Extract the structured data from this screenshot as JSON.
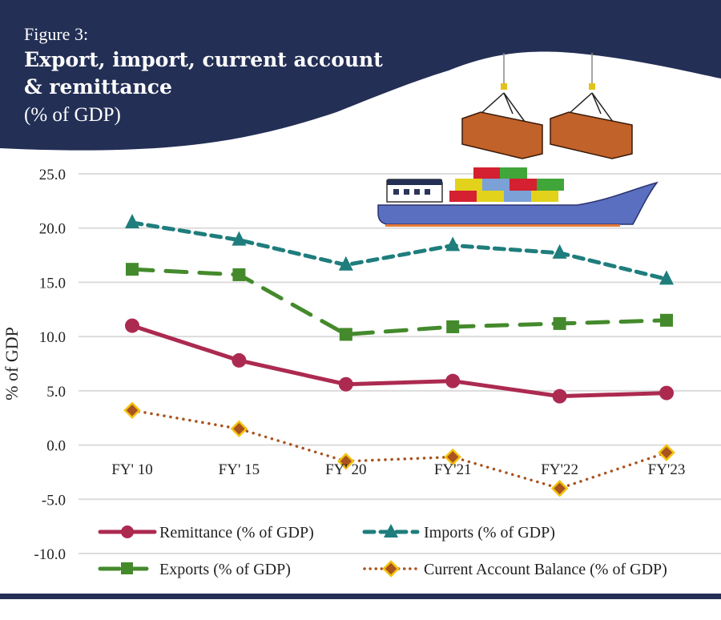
{
  "header": {
    "figure_label": "Figure 3:",
    "title": "Export, import, current account & remittance",
    "subtitle": "(% of GDP)",
    "background_color": "#232f55",
    "illustration": "cargo-ship-with-containers"
  },
  "chart_data": {
    "type": "line",
    "title": "Export, import, current account & remittance",
    "subtitle": "(% of GDP)",
    "xlabel": "",
    "ylabel": "% of GDP",
    "categories": [
      "FY' 10",
      "FY' 15",
      "FY' 20",
      "FY'21",
      "FY'22",
      "FY'23"
    ],
    "ylim": [
      -10,
      25
    ],
    "yticks": [
      25,
      20,
      15,
      10,
      5,
      0,
      -5,
      -10
    ],
    "ytick_labels": [
      "25.0",
      "20.0",
      "15.0",
      "10.0",
      "5.0",
      "0.0",
      "-5.0",
      "-10.0"
    ],
    "grid": true,
    "legend_position": "bottom",
    "series": [
      {
        "name": "Remittance (% of GDP)",
        "values": [
          11.0,
          7.8,
          5.6,
          5.9,
          4.5,
          4.8
        ],
        "color": "#ac2a50",
        "marker": "circle",
        "dash": "solid"
      },
      {
        "name": "Imports (% of GDP)",
        "values": [
          20.5,
          18.9,
          16.6,
          18.4,
          17.7,
          15.3
        ],
        "color": "#1f7d7d",
        "marker": "triangle",
        "dash": "dash"
      },
      {
        "name": "Exports (% of GDP)",
        "values": [
          16.2,
          15.7,
          10.2,
          10.9,
          11.2,
          11.5
        ],
        "color": "#448a2c",
        "marker": "square",
        "dash": "longdash"
      },
      {
        "name": "Current Account Balance (% of GDP)",
        "values": [
          3.2,
          1.5,
          -1.5,
          -1.1,
          -4.0,
          -0.7
        ],
        "color": "#a9531f",
        "marker": "diamond",
        "marker_edge": "#f4c20d",
        "dash": "dot"
      }
    ]
  }
}
